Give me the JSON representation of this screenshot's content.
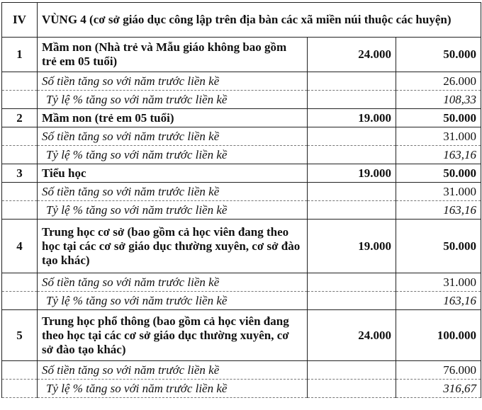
{
  "section": {
    "stt": "IV",
    "title": "VÙNG 4 (cơ sở giáo dục công lập trên địa bàn các xã miền núi thuộc các huyện)"
  },
  "rows": [
    {
      "stt": "1",
      "name": "Mầm non (Nhà trẻ và Mẫu giáo không bao gồm trẻ em 05 tuổi)",
      "old": "24.000",
      "new": "50.000",
      "increase_label": "Số tiền tăng so với năm trước liền kề",
      "increase": "26.000",
      "percent_label": "Tỷ lệ % tăng so với năm trước liền kề",
      "percent": "108,33"
    },
    {
      "stt": "2",
      "name": "Mầm non (trẻ em 05 tuổi)",
      "old": "19.000",
      "new": "50.000",
      "increase_label": "Số tiền tăng so với năm trước liền kề",
      "increase": "31.000",
      "percent_label": "Tỷ lệ % tăng so với năm trước liền kề",
      "percent": "163,16"
    },
    {
      "stt": "3",
      "name": "Tiểu học",
      "old": "19.000",
      "new": "50.000",
      "increase_label": "Số tiền tăng so với năm trước liền kề",
      "increase": "31.000",
      "percent_label": "Tỷ lệ % tăng so với năm trước liền kề",
      "percent": "163,16"
    },
    {
      "stt": "4",
      "name": "Trung học cơ sở (bao gồm cả học viên đang theo học tại các cơ sở giáo dục thường xuyên, cơ sở đào tạo khác)",
      "old": "19.000",
      "new": "50.000",
      "increase_label": "Số tiền tăng so với năm trước liền kề",
      "increase": "31.000",
      "percent_label": "Tỷ lệ % tăng so với năm trước liền kề",
      "percent": "163,16"
    },
    {
      "stt": "5",
      "name": "Trung học phổ thông (bao gồm cả học viên đang theo học tại các cơ sở giáo dục thường xuyên, cơ sở đào tạo khác)",
      "old": "24.000",
      "new": "100.000",
      "increase_label": "Số tiền tăng so với năm trước liền kề",
      "increase": "76.000",
      "percent_label": "Tỷ lệ % tăng so với năm trước liền kề",
      "percent": "316,67"
    }
  ]
}
